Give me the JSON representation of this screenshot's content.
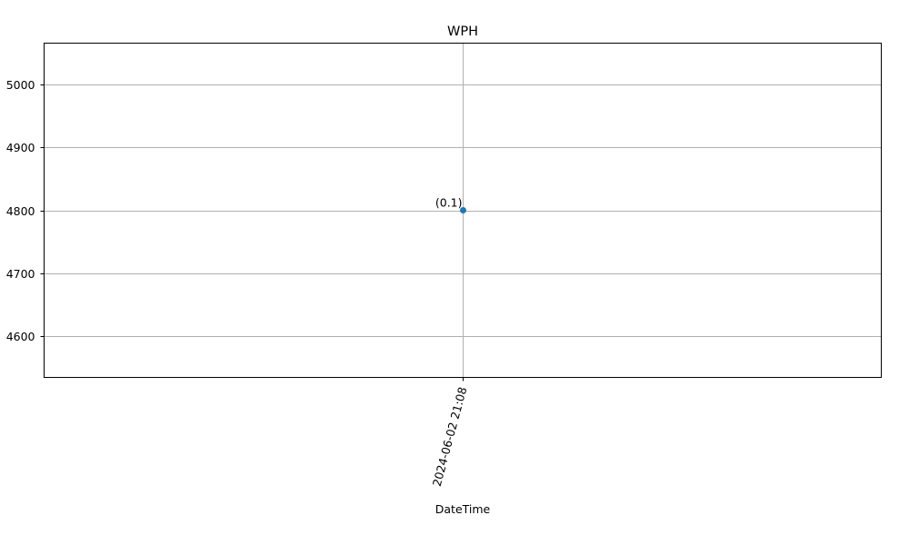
{
  "chart_data": {
    "type": "scatter",
    "title": "WPH",
    "xlabel": "DateTime",
    "ylabel": "",
    "x_tick_labels": [
      "2024-06-02 21:08"
    ],
    "x": [
      "2024-06-02 21:08"
    ],
    "y": [
      4800
    ],
    "point_labels": [
      "(0.1)"
    ],
    "ylim": [
      4535,
      5065
    ],
    "y_ticks": [
      4600,
      4700,
      4800,
      4900,
      5000
    ],
    "grid": true,
    "legend": "none",
    "series": [
      {
        "color": "#1f77b4",
        "values": [
          4800
        ]
      }
    ]
  }
}
